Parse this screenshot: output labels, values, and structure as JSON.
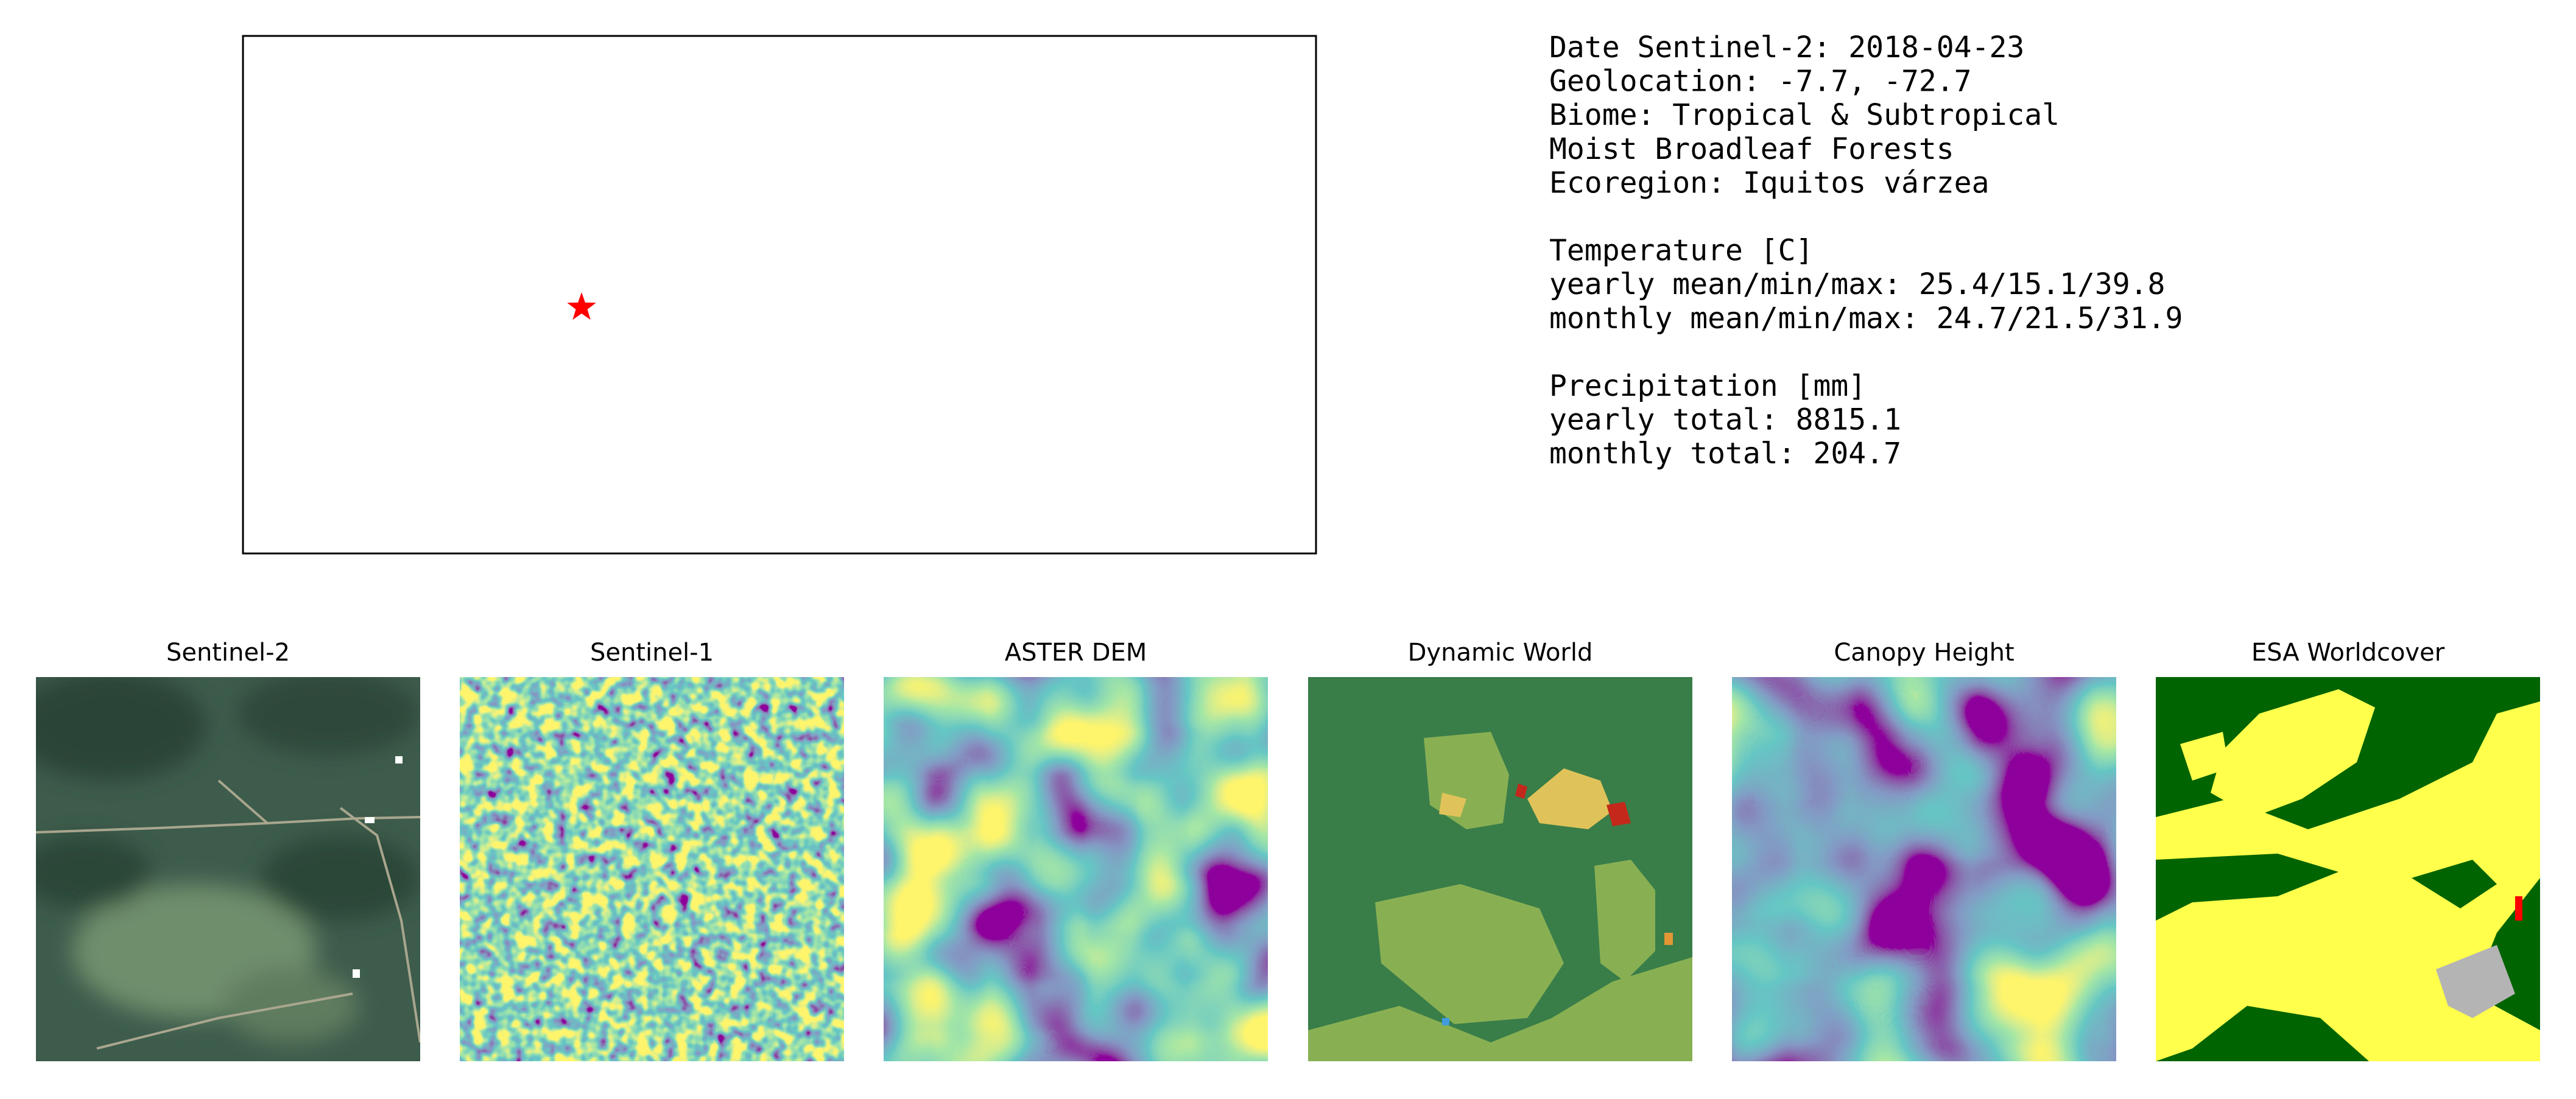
{
  "info": {
    "groups": [
      [
        "Date Sentinel-2: 2018-04-23",
        "Geolocation: -7.7, -72.7",
        "Biome: Tropical & Subtropical",
        "Moist Broadleaf Forests",
        "Ecoregion: Iquitos várzea"
      ],
      [
        "Temperature [C]",
        "yearly mean/min/max: 25.4/15.1/39.8",
        "monthly mean/min/max: 24.7/21.5/31.9"
      ],
      [
        "Precipitation [mm]",
        "yearly total: 8815.1",
        "monthly total: 204.7"
      ]
    ]
  },
  "panels": [
    {
      "title": "Sentinel-2"
    },
    {
      "title": "Sentinel-1"
    },
    {
      "title": "ASTER DEM"
    },
    {
      "title": "Dynamic World"
    },
    {
      "title": "Canopy Height"
    },
    {
      "title": "ESA Worldcover"
    }
  ]
}
